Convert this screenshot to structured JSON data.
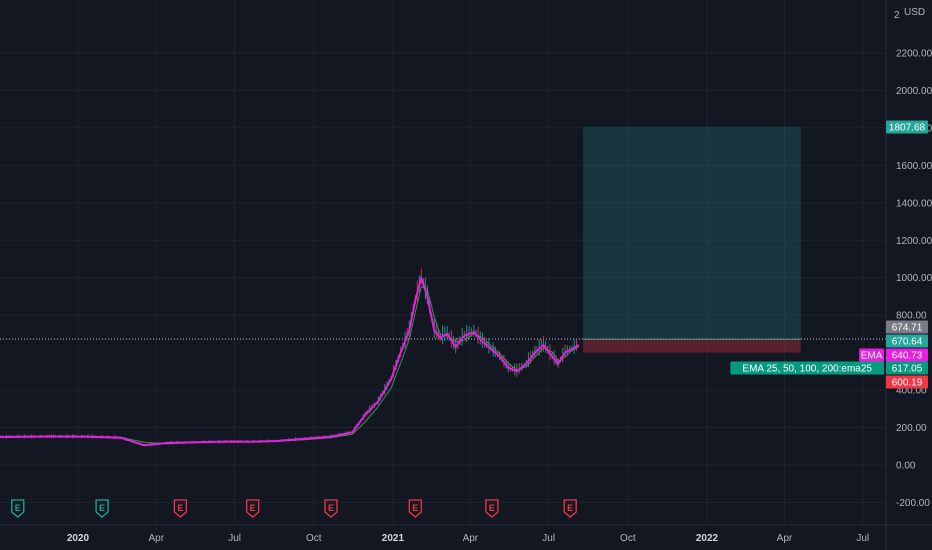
{
  "currency": "USD",
  "y_top_partial": "2",
  "chart_data": {
    "type": "line",
    "title": "",
    "xlabel": "",
    "ylabel": "",
    "ylim": [
      -300,
      2400
    ],
    "y_ticks": [
      "2200.00",
      "2000.00",
      "1800.00",
      "1600.00",
      "1400.00",
      "1200.00",
      "1000.00",
      "800.00",
      "400.00",
      "200.00",
      "0.00",
      "-200.00"
    ],
    "x_ticks": [
      {
        "label": "2020",
        "date": "2020-01-01",
        "bold": true
      },
      {
        "label": "Apr",
        "date": "2020-04-01",
        "bold": false
      },
      {
        "label": "Jul",
        "date": "2020-07-01",
        "bold": false
      },
      {
        "label": "Oct",
        "date": "2020-10-01",
        "bold": false
      },
      {
        "label": "2021",
        "date": "2021-01-01",
        "bold": true
      },
      {
        "label": "Apr",
        "date": "2021-04-01",
        "bold": false
      },
      {
        "label": "Jul",
        "date": "2021-07-01",
        "bold": false
      },
      {
        "label": "Oct",
        "date": "2021-10-01",
        "bold": false
      },
      {
        "label": "2022",
        "date": "2022-01-01",
        "bold": true
      },
      {
        "label": "Apr",
        "date": "2022-04-01",
        "bold": false
      },
      {
        "label": "Jul",
        "date": "2022-07-01",
        "bold": false
      }
    ],
    "series": [
      {
        "name": "EMA",
        "color": "#e61fe3",
        "points": [
          [
            "2019-09-01",
            148
          ],
          [
            "2019-10-15",
            150
          ],
          [
            "2019-12-01",
            152
          ],
          [
            "2020-01-15",
            151
          ],
          [
            "2020-02-20",
            145
          ],
          [
            "2020-03-18",
            105
          ],
          [
            "2020-04-15",
            118
          ],
          [
            "2020-05-20",
            122
          ],
          [
            "2020-06-20",
            125
          ],
          [
            "2020-07-20",
            124
          ],
          [
            "2020-08-20",
            128
          ],
          [
            "2020-09-20",
            140
          ],
          [
            "2020-10-20",
            150
          ],
          [
            "2020-11-15",
            175
          ],
          [
            "2020-11-30",
            270
          ],
          [
            "2020-12-15",
            340
          ],
          [
            "2020-12-30",
            460
          ],
          [
            "2021-01-10",
            600
          ],
          [
            "2021-01-20",
            720
          ],
          [
            "2021-01-27",
            880
          ],
          [
            "2021-02-03",
            1000
          ],
          [
            "2021-02-10",
            900
          ],
          [
            "2021-02-18",
            720
          ],
          [
            "2021-02-25",
            680
          ],
          [
            "2021-03-05",
            700
          ],
          [
            "2021-03-15",
            630
          ],
          [
            "2021-03-25",
            690
          ],
          [
            "2021-04-05",
            710
          ],
          [
            "2021-04-15",
            660
          ],
          [
            "2021-04-25",
            620
          ],
          [
            "2021-05-05",
            580
          ],
          [
            "2021-05-15",
            520
          ],
          [
            "2021-05-25",
            500
          ],
          [
            "2021-06-05",
            540
          ],
          [
            "2021-06-15",
            600
          ],
          [
            "2021-06-25",
            640
          ],
          [
            "2021-07-05",
            580
          ],
          [
            "2021-07-12",
            540
          ],
          [
            "2021-07-20",
            600
          ],
          [
            "2021-07-28",
            620
          ],
          [
            "2021-08-05",
            640
          ]
        ]
      }
    ],
    "position_tool": {
      "start": "2021-08-10",
      "end": "2022-04-20",
      "entry": 670.64,
      "target": 1807.68,
      "stop": 600.19
    },
    "price_lines": [
      674.71,
      670.64
    ],
    "earnings_markers": [
      {
        "date": "2019-10-23",
        "label": "E",
        "color": "#26a69a"
      },
      {
        "date": "2020-01-29",
        "label": "E",
        "color": "#26a69a"
      },
      {
        "date": "2020-04-29",
        "label": "E",
        "color": "#f23645"
      },
      {
        "date": "2020-07-22",
        "label": "E",
        "color": "#f23645"
      },
      {
        "date": "2020-10-21",
        "label": "E",
        "color": "#f23645"
      },
      {
        "date": "2021-01-27",
        "label": "E",
        "color": "#f23645"
      },
      {
        "date": "2021-04-26",
        "label": "E",
        "color": "#f23645"
      },
      {
        "date": "2021-07-26",
        "label": "E",
        "color": "#f23645"
      }
    ]
  },
  "price_badges": [
    {
      "value": 1807.68,
      "text": "1807.68",
      "bg": "#26a69a",
      "fg": "#ffffff"
    },
    {
      "value": 674.71,
      "text": "674.71",
      "bg": "#787b86",
      "fg": "#ffffff"
    },
    {
      "value": 670.64,
      "text": "670.64",
      "bg": "#26a69a",
      "fg": "#ffffff"
    },
    {
      "value": 640.73,
      "text": "640.73",
      "bg": "#e61fe3",
      "fg": "#ffffff",
      "tag": "EMA"
    },
    {
      "value": 617.05,
      "text": "617.05",
      "bg": "#089981",
      "fg": "#ffffff",
      "tag": "EMA 25, 50, 100, 200:ema25"
    },
    {
      "value": 600.19,
      "text": "600.19",
      "bg": "#f23645",
      "fg": "#ffffff"
    }
  ]
}
